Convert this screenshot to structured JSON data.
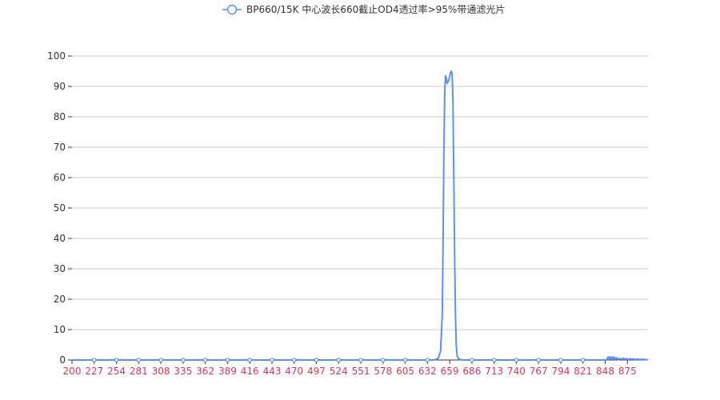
{
  "chart_data": {
    "type": "line",
    "legend": {
      "label": "BP660/15K 中心波长660截止OD4透过率>95%带通滤光片",
      "placement": "top-center"
    },
    "x_ticks": [
      200,
      227,
      254,
      281,
      308,
      335,
      362,
      389,
      416,
      443,
      470,
      497,
      524,
      551,
      578,
      605,
      632,
      659,
      686,
      713,
      740,
      767,
      794,
      821,
      848,
      875
    ],
    "xlim": [
      200,
      900
    ],
    "ylim": [
      0,
      100
    ],
    "y_ticks": [
      0,
      10,
      20,
      30,
      40,
      50,
      60,
      70,
      80,
      90,
      100
    ],
    "grid": "horizontal",
    "colors": {
      "series": "#5b8ff9",
      "x_tick_label": "#d4375a",
      "grid": "#cccccc"
    },
    "series": [
      {
        "name": "BP660/15K 中心波长660截止OD4透过率>95%带通滤光片",
        "points": [
          [
            200,
            0
          ],
          [
            640,
            0
          ],
          [
            645,
            0.5
          ],
          [
            648,
            3
          ],
          [
            650,
            15
          ],
          [
            651,
            40
          ],
          [
            652,
            70
          ],
          [
            653,
            88
          ],
          [
            654,
            93.5
          ],
          [
            655,
            92.5
          ],
          [
            656,
            91
          ],
          [
            658,
            92
          ],
          [
            660,
            94.5
          ],
          [
            661,
            95
          ],
          [
            662,
            94
          ],
          [
            663,
            85
          ],
          [
            664,
            60
          ],
          [
            665,
            35
          ],
          [
            666,
            15
          ],
          [
            667,
            5
          ],
          [
            668,
            1.5
          ],
          [
            670,
            0.3
          ],
          [
            675,
            0
          ],
          [
            850,
            0
          ],
          [
            851,
            0.8
          ],
          [
            852,
            0.2
          ],
          [
            853,
            1.1
          ],
          [
            854,
            0.3
          ],
          [
            855,
            0.9
          ],
          [
            856,
            0.2
          ],
          [
            857,
            1.0
          ],
          [
            858,
            0.4
          ],
          [
            859,
            0.9
          ],
          [
            860,
            0.2
          ],
          [
            861,
            0.7
          ],
          [
            862,
            0.3
          ],
          [
            863,
            0.6
          ],
          [
            864,
            0.1
          ],
          [
            866,
            0.5
          ],
          [
            868,
            0.2
          ],
          [
            870,
            0.6
          ],
          [
            872,
            0.2
          ],
          [
            874,
            0.5
          ],
          [
            876,
            0.1
          ],
          [
            878,
            0.4
          ],
          [
            880,
            0.2
          ],
          [
            882,
            0.4
          ],
          [
            884,
            0.1
          ],
          [
            886,
            0.3
          ],
          [
            890,
            0.2
          ],
          [
            895,
            0.2
          ],
          [
            900,
            0.1
          ]
        ],
        "markers_at": [
          227,
          254,
          281,
          308,
          335,
          362,
          389,
          416,
          443,
          470,
          497,
          524,
          551,
          578,
          605,
          632,
          686,
          713,
          740,
          767,
          794,
          821
        ]
      }
    ]
  }
}
